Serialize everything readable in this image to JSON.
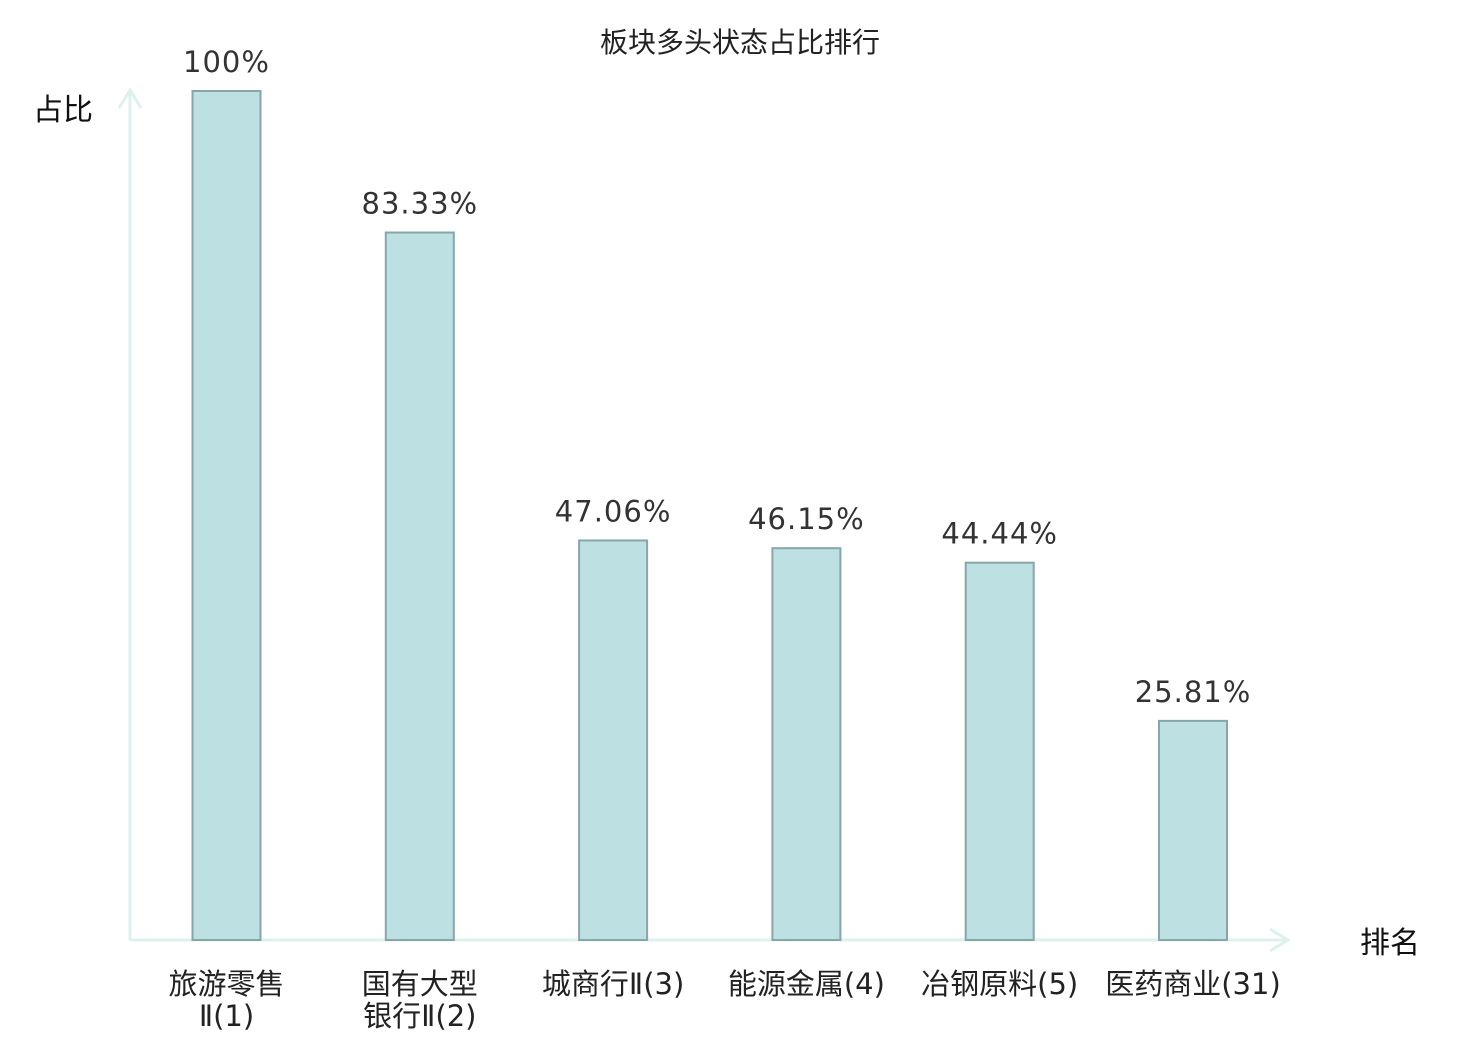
{
  "chart_data": {
    "type": "bar",
    "title": "板块多头状态占比排行",
    "ylabel": "占比",
    "xlabel": "排名",
    "ylim": [
      0,
      100
    ],
    "grid": false,
    "categories": [
      {
        "name": "旅游零售",
        "rank": "Ⅱ(1)",
        "value": 100,
        "value_label": "100%",
        "highlight": false
      },
      {
        "name": "国有大型",
        "rank": "银行Ⅱ(2)",
        "value": 83.33,
        "value_label": "83.33%",
        "highlight": false
      },
      {
        "name": "城商行",
        "rank": "Ⅱ(3)",
        "value": 47.06,
        "value_label": "47.06%",
        "highlight": false
      },
      {
        "name": "能源金属",
        "rank": "(4)",
        "value": 46.15,
        "value_label": "46.15%",
        "highlight": false
      },
      {
        "name": "冶钢原料",
        "rank": "(5)",
        "value": 44.44,
        "value_label": "44.44%",
        "highlight": false
      },
      {
        "name": "医药商业",
        "rank": "(31)",
        "value": 25.81,
        "value_label": "25.81%",
        "highlight": true
      }
    ],
    "colors": {
      "bar_fill": "#bde0e3",
      "bar_stroke": "#86a6aa",
      "axis": "#ddf2ee",
      "highlight_text": "#e02020",
      "text": "#222222"
    }
  }
}
